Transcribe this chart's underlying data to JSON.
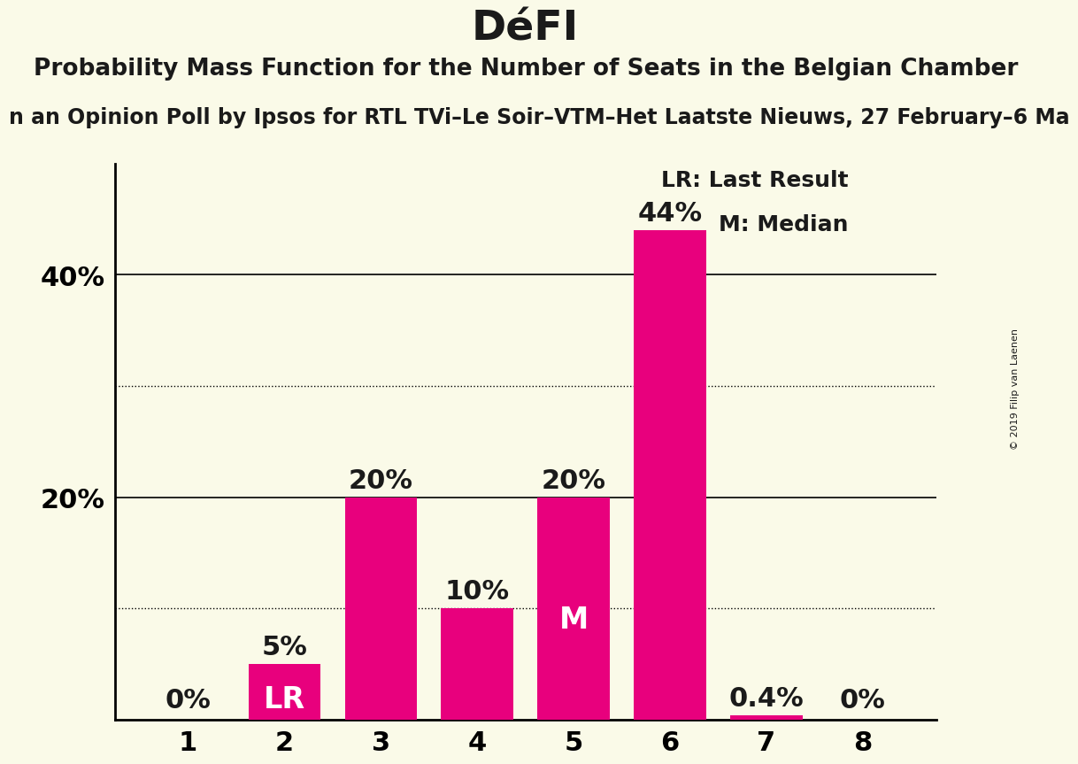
{
  "title": "DéFI",
  "subtitle": "Probability Mass Function for the Number of Seats in the Belgian Chamber",
  "sub_subtitle": "n an Opinion Poll by Ipsos for RTL TVi–Le Soir–VTM–Het Laatste Nieuws, 27 February–6 Ma",
  "copyright": "© 2019 Filip van Laenen",
  "categories": [
    1,
    2,
    3,
    4,
    5,
    6,
    7,
    8
  ],
  "values": [
    0.0,
    5.0,
    20.0,
    10.0,
    20.0,
    44.0,
    0.4,
    0.0
  ],
  "bar_color": "#e8007d",
  "background_color": "#fafae8",
  "label_color_outside": "#1a1a1a",
  "label_color_inside": "#ffffff",
  "labels": [
    "0%",
    "5%",
    "20%",
    "10%",
    "20%",
    "44%",
    "0.4%",
    "0%"
  ],
  "bar_labels": [
    "",
    "LR",
    "",
    "",
    "M",
    "",
    "",
    ""
  ],
  "ylim": [
    0,
    50
  ],
  "solid_gridlines": [
    20,
    40
  ],
  "dotted_gridlines": [
    10,
    30
  ],
  "legend_lr": "LR: Last Result",
  "legend_m": "M: Median",
  "title_fontsize": 34,
  "subtitle_fontsize": 19,
  "sub_subtitle_fontsize": 17,
  "axis_tick_fontsize": 22,
  "bar_label_fontsize": 22,
  "inner_label_fontsize": 24,
  "legend_fontsize": 18
}
